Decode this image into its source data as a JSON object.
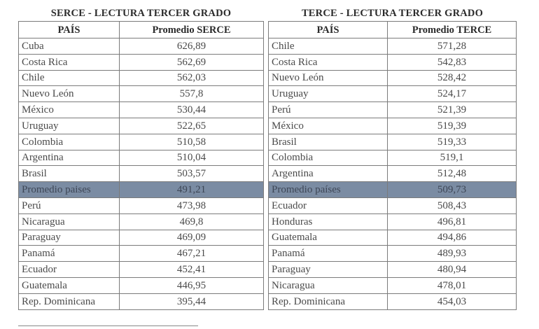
{
  "tables": [
    {
      "title": "SERCE - LECTURA TERCER GRADO",
      "headers": [
        "PAÍS",
        "Promedio SERCE"
      ],
      "rows": [
        {
          "country": "Cuba",
          "value": "626,89"
        },
        {
          "country": "Costa Rica",
          "value": "562,69"
        },
        {
          "country": "Chile",
          "value": "562,03"
        },
        {
          "country": "Nuevo León",
          "value": "557,8"
        },
        {
          "country": "México",
          "value": "530,44"
        },
        {
          "country": "Uruguay",
          "value": "522,65"
        },
        {
          "country": "Colombia",
          "value": "510,58"
        },
        {
          "country": "Argentina",
          "value": "510,04"
        },
        {
          "country": "Brasil",
          "value": "503,57"
        },
        {
          "country": "Promedio paises",
          "value": "491,21",
          "highlight": true
        },
        {
          "country": "Perú",
          "value": "473,98"
        },
        {
          "country": "Nicaragua",
          "value": "469,8"
        },
        {
          "country": "Paraguay",
          "value": "469,09"
        },
        {
          "country": "Panamá",
          "value": "467,21"
        },
        {
          "country": "Ecuador",
          "value": "452,41"
        },
        {
          "country": "Guatemala",
          "value": "446,95"
        },
        {
          "country": "Rep. Dominicana",
          "value": "395,44"
        }
      ]
    },
    {
      "title": "TERCE - LECTURA TERCER GRADO",
      "headers": [
        "PAÍS",
        "Promedio TERCE"
      ],
      "rows": [
        {
          "country": "Chile",
          "value": "571,28"
        },
        {
          "country": "Costa Rica",
          "value": "542,83"
        },
        {
          "country": "Nuevo León",
          "value": "528,42"
        },
        {
          "country": "Uruguay",
          "value": "524,17"
        },
        {
          "country": "Perú",
          "value": "521,39"
        },
        {
          "country": "México",
          "value": "519,39"
        },
        {
          "country": "Brasil",
          "value": "519,33"
        },
        {
          "country": "Colombia",
          "value": "519,1"
        },
        {
          "country": "Argentina",
          "value": "512,48"
        },
        {
          "country": "Promedio países",
          "value": "509,73",
          "highlight": true
        },
        {
          "country": "Ecuador",
          "value": "508,43"
        },
        {
          "country": "Honduras",
          "value": "496,81"
        },
        {
          "country": "Guatemala",
          "value": "494,86"
        },
        {
          "country": "Panamá",
          "value": "489,93"
        },
        {
          "country": "Paraguay",
          "value": "480,94"
        },
        {
          "country": "Nicaragua",
          "value": "478,01"
        },
        {
          "country": "Rep. Dominicana",
          "value": "454,03"
        }
      ]
    }
  ],
  "colors": {
    "highlight_row": "#7b8ca3",
    "border": "#7b7b7b"
  }
}
